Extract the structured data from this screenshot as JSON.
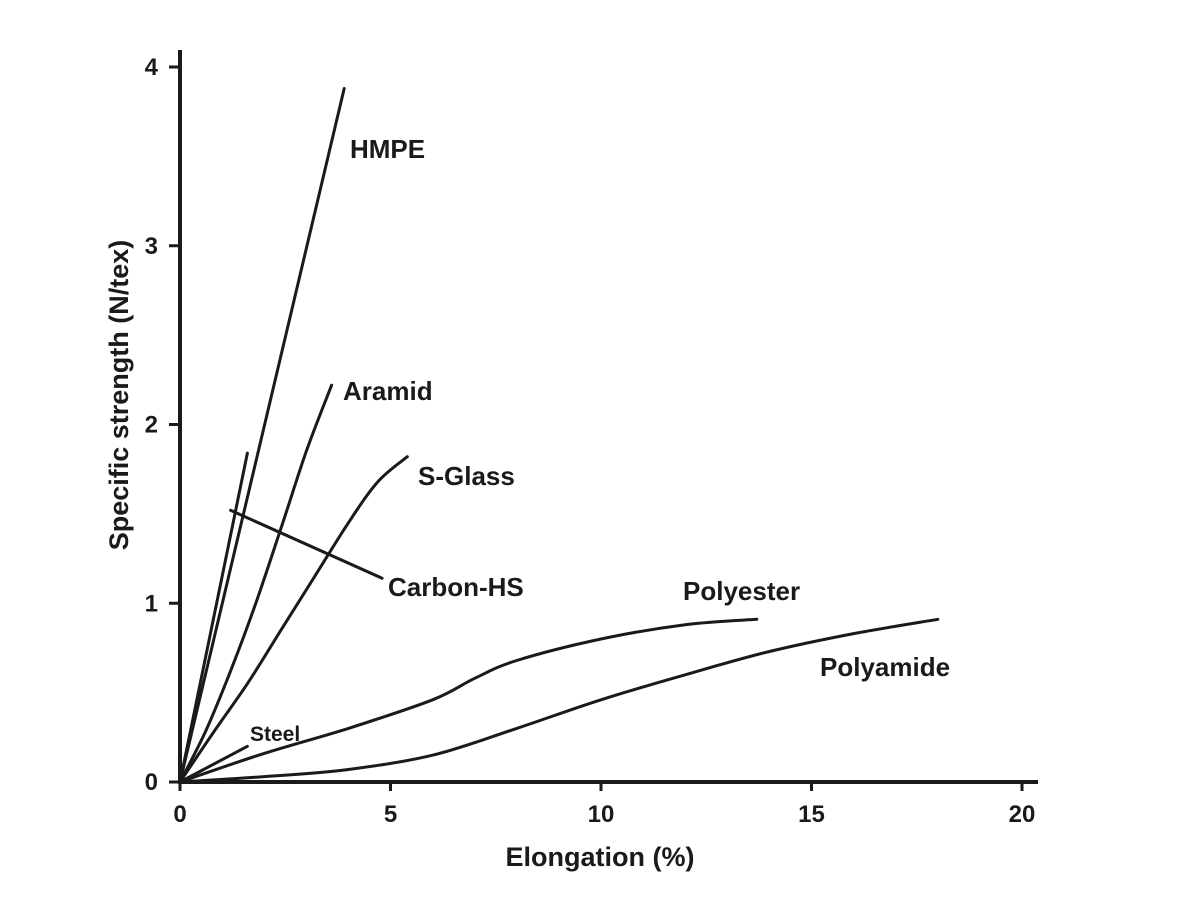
{
  "chart_data": {
    "type": "line",
    "title": "",
    "xlabel": "Elongation (%)",
    "ylabel": "Specific strength (N/tex)",
    "xlim": [
      0,
      20
    ],
    "ylim": [
      0,
      4
    ],
    "x_ticks": [
      "0",
      "5",
      "10",
      "15",
      "20"
    ],
    "y_ticks": [
      "0",
      "1",
      "2",
      "3",
      "4"
    ],
    "grid": false,
    "legend": "none",
    "line_color": "#1a1a1a",
    "series": [
      {
        "name": "HMPE",
        "x": [
          0,
          3.9
        ],
        "y": [
          0,
          3.88
        ]
      },
      {
        "name": "Aramid",
        "x": [
          0,
          0.6,
          1.2,
          1.8,
          2.4,
          3.0,
          3.6
        ],
        "y": [
          0,
          0.28,
          0.62,
          1.0,
          1.42,
          1.85,
          2.22
        ]
      },
      {
        "name": "S-Glass",
        "x": [
          0,
          0.8,
          1.6,
          2.4,
          3.2,
          4.0,
          4.7,
          5.4
        ],
        "y": [
          0,
          0.28,
          0.55,
          0.85,
          1.15,
          1.45,
          1.68,
          1.82
        ]
      },
      {
        "name": "Carbon-HS",
        "x": [
          0,
          1.6
        ],
        "y": [
          0,
          1.84
        ]
      },
      {
        "name": "Steel",
        "x": [
          0,
          1.6
        ],
        "y": [
          0,
          0.2
        ]
      },
      {
        "name": "Polyester",
        "x": [
          0,
          2,
          4,
          6,
          7,
          8,
          10,
          12,
          13.7
        ],
        "y": [
          0,
          0.16,
          0.3,
          0.46,
          0.58,
          0.68,
          0.8,
          0.88,
          0.91
        ]
      },
      {
        "name": "Polyamide",
        "x": [
          0,
          2,
          4,
          6,
          8,
          10,
          12,
          14,
          16,
          18
        ],
        "y": [
          0,
          0.03,
          0.07,
          0.15,
          0.3,
          0.46,
          0.6,
          0.73,
          0.83,
          0.91
        ]
      }
    ],
    "annotations": [
      {
        "series": "Carbon-HS",
        "text": "Carbon-HS",
        "pointer_from": [
          1.2,
          1.52
        ],
        "pointer_to": [
          4.8,
          1.14
        ]
      }
    ]
  }
}
